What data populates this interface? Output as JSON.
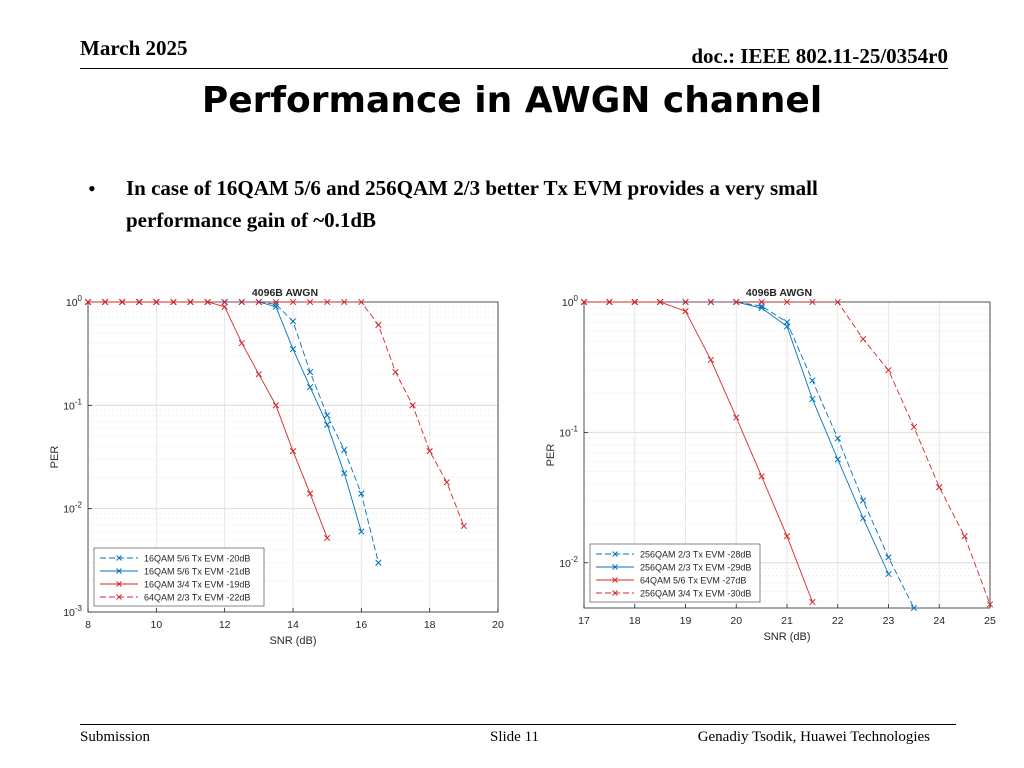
{
  "header": {
    "date": "March 2025",
    "doc": "doc.: IEEE 802.11-25/0354r0"
  },
  "title": "Performance in AWGN channel",
  "bullet": {
    "symbol": "•",
    "text": "In case of 16QAM 5/6 and 256QAM 2/3 better Tx EVM provides a very small performance gain of ~0.1dB"
  },
  "footer": {
    "left": "Submission",
    "center": "Slide 11",
    "right": "Genadiy Tsodik, Huawei Technologies"
  },
  "chart_data": [
    {
      "type": "line",
      "title": "4096B AWGN",
      "xlabel": "SNR (dB)",
      "ylabel": "PER",
      "yscale": "log",
      "xlim": [
        8,
        20
      ],
      "ylim": [
        0.001,
        1
      ],
      "xticks": [
        8,
        10,
        12,
        14,
        16,
        18,
        20
      ],
      "yticks": [
        1,
        0.1,
        0.01,
        0.001
      ],
      "grid": true,
      "legend": "bottom-left",
      "series": [
        {
          "name": "16QAM 5/6 Tx EVM -20dB",
          "color": "#0072BD",
          "dash": "dashed",
          "x": [
            8,
            8.5,
            9,
            9.5,
            10,
            10.5,
            11,
            11.5,
            12,
            12.5,
            13,
            13.5,
            14,
            14.5,
            15,
            15.5,
            16,
            16.5
          ],
          "y": [
            1,
            1,
            1,
            1,
            1,
            1,
            1,
            1,
            1,
            1,
            1,
            0.95,
            0.65,
            0.21,
            0.08,
            0.037,
            0.014,
            0.003
          ]
        },
        {
          "name": "16QAM 5/6 Tx EVM -21dB",
          "color": "#0072BD",
          "dash": "solid",
          "x": [
            8,
            8.5,
            9,
            9.5,
            10,
            10.5,
            11,
            11.5,
            12,
            12.5,
            13,
            13.5,
            14,
            14.5,
            15,
            15.5,
            16
          ],
          "y": [
            1,
            1,
            1,
            1,
            1,
            1,
            1,
            1,
            1,
            1,
            1,
            0.9,
            0.35,
            0.15,
            0.065,
            0.022,
            0.006
          ]
        },
        {
          "name": "16QAM 3/4 Tx EVM -19dB",
          "color": "#D62728",
          "dash": "solid",
          "x": [
            8,
            8.5,
            9,
            9.5,
            10,
            10.5,
            11,
            11.5,
            12,
            12.5,
            13,
            13.5,
            14,
            14.5,
            15
          ],
          "y": [
            1,
            1,
            1,
            1,
            1,
            1,
            1,
            1,
            0.9,
            0.4,
            0.2,
            0.1,
            0.036,
            0.014,
            0.0052
          ]
        },
        {
          "name": "64QAM 2/3 Tx EVM -22dB",
          "color": "#D62728",
          "dash": "dashed",
          "x": [
            8,
            8.5,
            9,
            9.5,
            10,
            10.5,
            11,
            11.5,
            12,
            12.5,
            13,
            13.5,
            14,
            14.5,
            15,
            15.5,
            16,
            16.5,
            17,
            17.5,
            18,
            18.5,
            19
          ],
          "y": [
            1,
            1,
            1,
            1,
            1,
            1,
            1,
            1,
            1,
            1,
            1,
            1,
            1,
            1,
            1,
            1,
            1,
            0.6,
            0.21,
            0.1,
            0.036,
            0.018,
            0.0068
          ]
        }
      ]
    },
    {
      "type": "line",
      "title": "4096B AWGN",
      "xlabel": "SNR (dB)",
      "ylabel": "PER",
      "yscale": "log",
      "xlim": [
        17,
        25
      ],
      "ylim": [
        0.0045,
        1
      ],
      "xticks": [
        17,
        18,
        19,
        20,
        21,
        22,
        23,
        24,
        25
      ],
      "yticks": [
        1,
        0.1,
        0.01
      ],
      "grid": true,
      "legend": "bottom-left",
      "series": [
        {
          "name": "256QAM 2/3 Tx EVM -28dB",
          "color": "#0072BD",
          "dash": "dashed",
          "x": [
            17,
            17.5,
            18,
            18.5,
            19,
            19.5,
            20,
            20.5,
            21,
            21.5,
            22,
            22.5,
            23,
            23.5
          ],
          "y": [
            1,
            1,
            1,
            1,
            1,
            1,
            1,
            0.93,
            0.7,
            0.25,
            0.09,
            0.03,
            0.011,
            0.0045
          ]
        },
        {
          "name": "256QAM 2/3 Tx EVM -29dB",
          "color": "#0072BD",
          "dash": "solid",
          "x": [
            17,
            17.5,
            18,
            18.5,
            19,
            19.5,
            20,
            20.5,
            21,
            21.5,
            22,
            22.5,
            23
          ],
          "y": [
            1,
            1,
            1,
            1,
            1,
            1,
            1,
            0.9,
            0.65,
            0.18,
            0.062,
            0.022,
            0.0082
          ]
        },
        {
          "name": "64QAM 5/6 Tx EVM -27dB",
          "color": "#D62728",
          "dash": "solid",
          "x": [
            17,
            17.5,
            18,
            18.5,
            19,
            19.5,
            20,
            20.5,
            21,
            21.5
          ],
          "y": [
            1,
            1,
            1,
            1,
            0.85,
            0.36,
            0.13,
            0.046,
            0.016,
            0.005
          ]
        },
        {
          "name": "256QAM 3/4 Tx EVM -30dB",
          "color": "#D62728",
          "dash": "dashed",
          "x": [
            17,
            17.5,
            18,
            18.5,
            19,
            19.5,
            20,
            20.5,
            21,
            21.5,
            22,
            22.5,
            23,
            23.5,
            24,
            24.5,
            25
          ],
          "y": [
            1,
            1,
            1,
            1,
            1,
            1,
            1,
            1,
            1,
            1,
            1,
            0.52,
            0.3,
            0.11,
            0.038,
            0.016,
            0.0048
          ]
        }
      ]
    }
  ]
}
